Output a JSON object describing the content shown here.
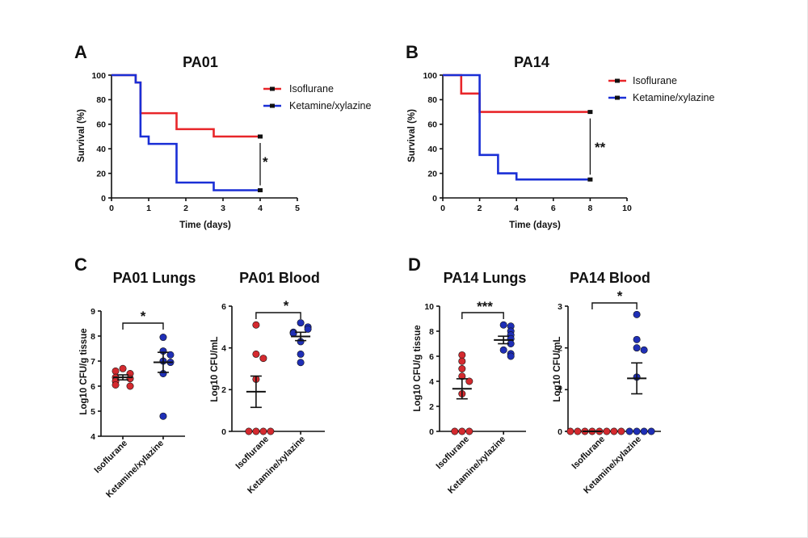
{
  "figure": {
    "panel_labels": [
      "A",
      "B",
      "C",
      "D"
    ]
  },
  "chart_data": [
    {
      "id": "A",
      "type": "line",
      "subtype": "kaplan-meier",
      "title": "PA01",
      "xlabel": "Time (days)",
      "ylabel": "Survival (%)",
      "xlim": [
        0,
        5
      ],
      "ylim": [
        0,
        100
      ],
      "xticks": [
        0,
        1,
        2,
        3,
        4,
        5
      ],
      "yticks": [
        0,
        20,
        40,
        60,
        80,
        100
      ],
      "legend_position": "top-right",
      "series": [
        {
          "name": "Isoflurane",
          "color": "#e8262a",
          "steps": [
            [
              0,
              100
            ],
            [
              0.65,
              94
            ],
            [
              0.78,
              69
            ],
            [
              1.75,
              56
            ],
            [
              2.75,
              50
            ],
            [
              4,
              50
            ]
          ]
        },
        {
          "name": "Ketamine/xylazine",
          "color": "#1a2fd6",
          "steps": [
            [
              0,
              100
            ],
            [
              0.65,
              94
            ],
            [
              0.78,
              50
            ],
            [
              1.0,
              44
            ],
            [
              1.75,
              12.5
            ],
            [
              2.75,
              6.25
            ],
            [
              4,
              6.25
            ]
          ]
        }
      ],
      "significance": "*"
    },
    {
      "id": "B",
      "type": "line",
      "subtype": "kaplan-meier",
      "title": "PA14",
      "xlabel": "Time (days)",
      "ylabel": "Survival (%)",
      "xlim": [
        0,
        10
      ],
      "ylim": [
        0,
        100
      ],
      "xticks": [
        0,
        2,
        4,
        6,
        8,
        10
      ],
      "yticks": [
        0,
        20,
        40,
        60,
        80,
        100
      ],
      "legend_position": "top-right",
      "series": [
        {
          "name": "Isoflurane",
          "color": "#e8262a",
          "steps": [
            [
              0,
              100
            ],
            [
              1,
              85
            ],
            [
              2,
              70
            ],
            [
              8,
              70
            ]
          ]
        },
        {
          "name": "Ketamine/xylazine",
          "color": "#1a2fd6",
          "steps": [
            [
              0,
              100
            ],
            [
              2,
              35
            ],
            [
              3,
              20
            ],
            [
              4,
              15
            ],
            [
              8,
              15
            ]
          ]
        }
      ],
      "significance": "**"
    },
    {
      "id": "C1",
      "type": "scatter",
      "title": "PA01 Lungs",
      "ylabel": "Log10 CFU/g tissue",
      "ylim": [
        4,
        9
      ],
      "yticks": [
        4,
        5,
        6,
        7,
        8,
        9
      ],
      "categories": [
        "Isoflurane",
        "Ketamine/xylazine"
      ],
      "series": [
        {
          "name": "Isoflurane",
          "color": "#d42a2f",
          "values": [
            6.7,
            6.5,
            6.6,
            6.3,
            6.35,
            6.2,
            6.0,
            6.05
          ],
          "mean": 6.35,
          "sem": 0.1
        },
        {
          "name": "Ketamine/xylazine",
          "color": "#1f2fb6",
          "values": [
            7.95,
            7.4,
            7.25,
            7.0,
            6.95,
            6.5,
            4.8
          ],
          "mean": 6.95,
          "sem": 0.4
        }
      ],
      "significance": "*"
    },
    {
      "id": "C2",
      "type": "scatter",
      "title": "PA01 Blood",
      "ylabel": "Log10 CFU/mL",
      "ylim": [
        0,
        6
      ],
      "yticks": [
        0,
        2,
        4,
        6
      ],
      "categories": [
        "Isoflurane",
        "Ketamine/xylazine"
      ],
      "series": [
        {
          "name": "Isoflurane",
          "color": "#d42a2f",
          "values": [
            5.1,
            3.7,
            3.5,
            2.5,
            0,
            0,
            0,
            0
          ],
          "mean": 1.9,
          "sem": 0.75
        },
        {
          "name": "Ketamine/xylazine",
          "color": "#1f2fb6",
          "values": [
            5.2,
            5.0,
            4.9,
            4.75,
            4.7,
            4.3,
            3.7,
            3.3
          ],
          "mean": 4.55,
          "sem": 0.2
        }
      ],
      "significance": "*"
    },
    {
      "id": "D1",
      "type": "scatter",
      "title": "PA14 Lungs",
      "ylabel": "Log10 CFU/g tissue",
      "ylim": [
        0,
        10
      ],
      "yticks": [
        0,
        2,
        4,
        6,
        8,
        10
      ],
      "categories": [
        "Isoflurane",
        "Ketamine/xylazine"
      ],
      "series": [
        {
          "name": "Isoflurane",
          "color": "#d42a2f",
          "values": [
            6.1,
            5.6,
            5.0,
            4.4,
            4.0,
            3.0,
            0,
            0,
            0
          ],
          "mean": 3.4,
          "sem": 0.8
        },
        {
          "name": "Ketamine/xylazine",
          "color": "#1f2fb6",
          "values": [
            8.5,
            8.4,
            8.0,
            7.7,
            7.4,
            7.0,
            6.5,
            6.2,
            6.0
          ],
          "mean": 7.3,
          "sem": 0.3
        }
      ],
      "significance": "***"
    },
    {
      "id": "D2",
      "type": "scatter",
      "title": "PA14 Blood",
      "ylabel": "Log10 CFU/mL",
      "ylim": [
        0,
        3
      ],
      "yticks": [
        0,
        1,
        2,
        3
      ],
      "categories": [
        "Isoflurane",
        "Ketamine/xylazine"
      ],
      "series": [
        {
          "name": "Isoflurane",
          "color": "#d42a2f",
          "values": [
            0,
            0,
            0,
            0,
            0,
            0,
            0,
            0
          ],
          "mean": 0,
          "sem": 0
        },
        {
          "name": "Ketamine/xylazine",
          "color": "#1f2fb6",
          "values": [
            2.8,
            2.2,
            2.0,
            1.95,
            1.3,
            0,
            0,
            0,
            0
          ],
          "mean": 1.27,
          "sem": 0.37
        }
      ],
      "significance": "*"
    }
  ]
}
